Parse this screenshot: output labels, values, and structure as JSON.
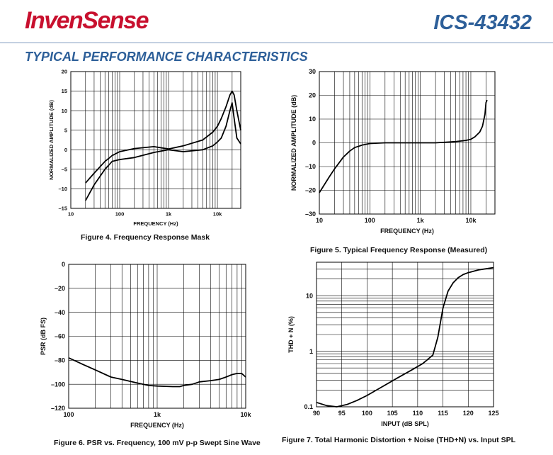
{
  "header": {
    "brand": "InvenSense",
    "part_number": "ICS-43432"
  },
  "section_title": "TYPICAL PERFORMANCE CHARACTERISTICS",
  "chart_data": [
    {
      "id": "fig4",
      "type": "line",
      "caption": "Figure 4. Frequency Response Mask",
      "xlabel": "FREQUENCY (Hz)",
      "ylabel": "NORMALIZED AMPLITUDE (dB)",
      "xscale": "log",
      "xlim": [
        10,
        30000
      ],
      "ylim": [
        -15,
        20
      ],
      "xticks": [
        10,
        100,
        1000,
        10000
      ],
      "xtick_labels": [
        "10",
        "100",
        "1k",
        "10k"
      ],
      "yticks": [
        -15,
        -10,
        -5,
        0,
        5,
        10,
        15,
        20
      ],
      "ytick_labels": [
        "–15",
        "–10",
        "–5",
        "0",
        "5",
        "10",
        "15",
        "20"
      ],
      "grid": true,
      "series": [
        {
          "x": [
            20,
            30,
            50,
            70,
            100,
            200,
            500,
            1000,
            2000,
            5000,
            8000,
            10000,
            12000,
            15000,
            18000,
            20000,
            22000,
            25000,
            30000
          ],
          "y": [
            -8.5,
            -6,
            -3,
            -1.5,
            -0.5,
            0.3,
            0.8,
            0.2,
            1,
            2.5,
            4.5,
            6,
            8,
            11,
            14,
            15,
            14,
            10,
            5
          ]
        },
        {
          "x": [
            20,
            30,
            50,
            70,
            100,
            200,
            500,
            1000,
            2000,
            5000,
            8000,
            10000,
            12000,
            15000,
            18000,
            20000,
            22000,
            25000,
            30000
          ],
          "y": [
            -13,
            -9,
            -5,
            -3,
            -2.5,
            -2,
            -0.7,
            0,
            -0.5,
            0,
            1,
            2,
            3,
            6,
            10,
            12,
            8,
            3,
            1.5
          ]
        }
      ]
    },
    {
      "id": "fig5",
      "type": "line",
      "caption": "Figure 5. Typical Frequency Response (Measured)",
      "xlabel": "FREQUENCY (Hz)",
      "ylabel": "NORMALIZED AMPLITUDE (dB)",
      "xscale": "log",
      "xlim": [
        10,
        30000
      ],
      "ylim": [
        -30,
        30
      ],
      "xticks": [
        10,
        100,
        1000,
        10000
      ],
      "xtick_labels": [
        "10",
        "100",
        "1k",
        "10k"
      ],
      "yticks": [
        -30,
        -20,
        -10,
        0,
        10,
        20,
        30
      ],
      "ytick_labels": [
        "–30",
        "–20",
        "–10",
        "0",
        "10",
        "20",
        "30"
      ],
      "grid": true,
      "series": [
        {
          "x": [
            10,
            15,
            20,
            30,
            40,
            50,
            70,
            100,
            200,
            500,
            1000,
            2000,
            5000,
            8000,
            10000,
            12000,
            15000,
            17000,
            19000,
            20000,
            21000
          ],
          "y": [
            -21,
            -15,
            -11,
            -6,
            -3.5,
            -2,
            -1,
            -0.3,
            0,
            0,
            0,
            0,
            0.5,
            1,
            1.5,
            2.5,
            4.5,
            7,
            12,
            17,
            18
          ]
        }
      ]
    },
    {
      "id": "fig6",
      "type": "line",
      "caption": "Figure 6. PSR vs. Frequency, 100 mV p-p Swept Sine Wave",
      "xlabel": "FREQUENCY (Hz)",
      "ylabel": "PSR (dB FS)",
      "xscale": "log",
      "xlim": [
        100,
        10000
      ],
      "ylim": [
        -120,
        0
      ],
      "xticks": [
        100,
        1000,
        10000
      ],
      "xtick_labels": [
        "100",
        "1k",
        "10k"
      ],
      "yticks": [
        -120,
        -100,
        -80,
        -60,
        -40,
        -20,
        0
      ],
      "ytick_labels": [
        "–120",
        "–100",
        "–80",
        "–60",
        "–40",
        "–20",
        "0"
      ],
      "grid": true,
      "series": [
        {
          "x": [
            100,
            150,
            200,
            300,
            400,
            600,
            800,
            1000,
            1500,
            1800,
            2000,
            2500,
            3000,
            4000,
            5000,
            6000,
            7000,
            8000,
            9000,
            10000
          ],
          "y": [
            -78,
            -84,
            -88,
            -94,
            -96,
            -99,
            -101,
            -101.5,
            -102,
            -102,
            -101,
            -100,
            -98,
            -97,
            -96,
            -94,
            -92,
            -91,
            -91,
            -94
          ]
        }
      ]
    },
    {
      "id": "fig7",
      "type": "line",
      "caption": "Figure 7. Total Harmonic Distortion + Noise (THD+N) vs. Input SPL",
      "xlabel": "INPUT (dB SPL)",
      "ylabel": "THD + N (%)",
      "yscale": "log",
      "xlim": [
        90,
        125
      ],
      "ylim": [
        0.1,
        40
      ],
      "xticks": [
        90,
        95,
        100,
        105,
        110,
        115,
        120,
        125
      ],
      "xtick_labels": [
        "90",
        "95",
        "100",
        "105",
        "110",
        "115",
        "120",
        "125"
      ],
      "yticks": [
        0.1,
        1,
        10
      ],
      "ytick_labels": [
        "0.1",
        "1",
        "10"
      ],
      "grid": true,
      "series": [
        {
          "x": [
            90,
            92,
            94,
            96,
            98,
            100,
            103,
            106,
            109,
            111,
            113,
            114,
            115,
            116,
            117,
            118,
            119,
            120,
            122,
            124,
            125
          ],
          "y": [
            0.12,
            0.105,
            0.1,
            0.11,
            0.13,
            0.16,
            0.23,
            0.33,
            0.47,
            0.6,
            0.85,
            1.8,
            6,
            12,
            17,
            21,
            24,
            26,
            29,
            31,
            32
          ]
        }
      ]
    }
  ]
}
